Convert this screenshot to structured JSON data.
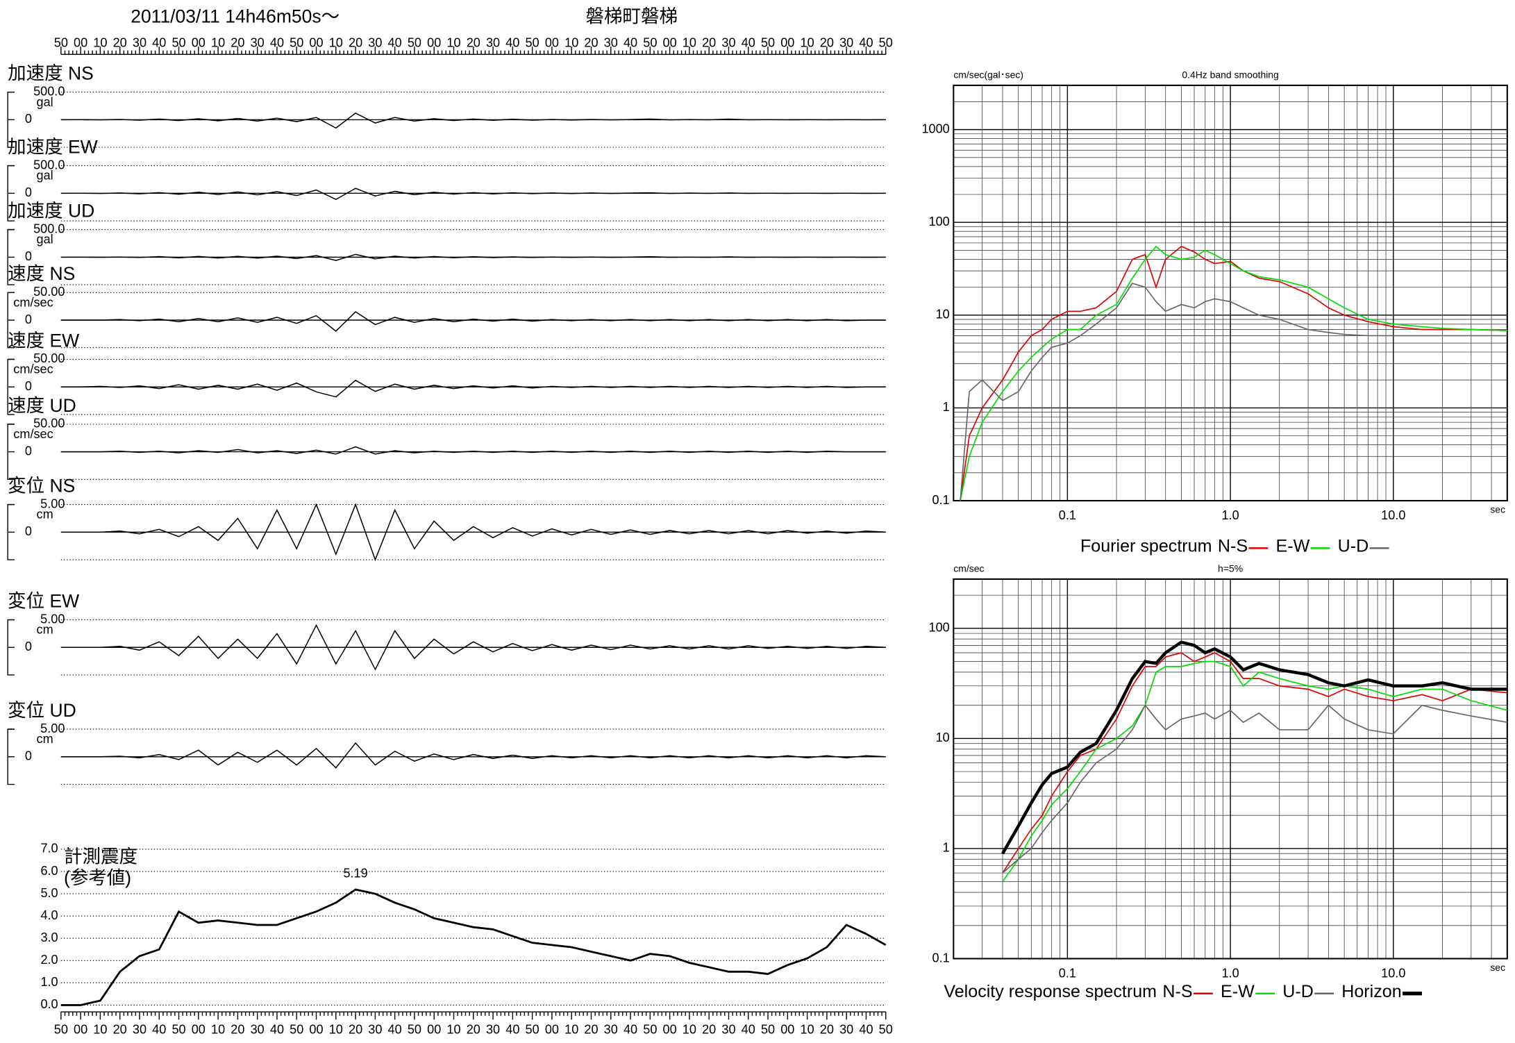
{
  "header": {
    "datetime": "2011/03/11  14h46m50s～",
    "station": "磐梯町磐梯"
  },
  "chart_data": [
    {
      "type": "waveform",
      "time_labels": [
        "50",
        "00",
        "10",
        "20",
        "30",
        "40",
        "50",
        "00",
        "10",
        "20",
        "30",
        "40",
        "50",
        "00",
        "10",
        "20",
        "30",
        "40",
        "50",
        "00",
        "10",
        "20",
        "30",
        "40",
        "50",
        "00",
        "10",
        "20",
        "30",
        "40",
        "50",
        "00",
        "10",
        "20",
        "30",
        "40",
        "50",
        "00",
        "10",
        "20",
        "30",
        "40",
        "50"
      ],
      "traces": [
        {
          "label": "加速度 NS",
          "unit": "gal",
          "ylim": [
            -500,
            500
          ],
          "yticks": [
            0,
            {
              "value": 500,
              "label": "500.0"
            }
          ],
          "values": [
            0,
            2,
            -3,
            5,
            -8,
            12,
            -15,
            18,
            -20,
            22,
            -25,
            28,
            -35,
            40,
            -150,
            120,
            -60,
            40,
            -25,
            20,
            -15,
            12,
            -10,
            8,
            -8,
            6,
            -5,
            5,
            -4,
            3,
            12,
            -3,
            3,
            -2,
            10,
            -2,
            2,
            -2,
            2,
            -1,
            1,
            -1,
            0
          ]
        },
        {
          "label": "加速度 EW",
          "unit": "gal",
          "ylim": [
            -500,
            500
          ],
          "yticks": [
            0,
            {
              "value": 500,
              "label": "500.0"
            }
          ],
          "values": [
            0,
            2,
            -3,
            5,
            -8,
            12,
            -18,
            20,
            -22,
            25,
            -28,
            30,
            -40,
            60,
            -110,
            90,
            -50,
            35,
            -25,
            18,
            -14,
            12,
            -10,
            8,
            -7,
            6,
            -5,
            5,
            -4,
            3,
            8,
            -3,
            3,
            -2,
            6,
            -2,
            2,
            -2,
            2,
            -1,
            1,
            -1,
            0
          ]
        },
        {
          "label": "加速度 UD",
          "unit": "gal",
          "ylim": [
            -500,
            500
          ],
          "yticks": [
            0,
            {
              "value": 500,
              "label": "500.0"
            }
          ],
          "values": [
            0,
            1,
            -2,
            4,
            -6,
            10,
            -12,
            14,
            -15,
            16,
            -18,
            20,
            -24,
            30,
            -60,
            50,
            -30,
            20,
            -15,
            12,
            -10,
            8,
            -7,
            6,
            -5,
            4,
            -4,
            3,
            -3,
            2,
            8,
            -2,
            2,
            -2,
            6,
            -1,
            1,
            -1,
            1,
            -1,
            1,
            -1,
            0
          ]
        },
        {
          "label": "速度 NS",
          "unit": "cm/sec",
          "ylim": [
            -50,
            50
          ],
          "yticks": [
            0,
            {
              "value": 50,
              "label": "50.00"
            }
          ],
          "values": [
            0,
            0,
            0,
            1,
            -1,
            2,
            -3,
            3,
            -3,
            4,
            -4,
            5,
            -6,
            8,
            -20,
            15,
            -8,
            5,
            -4,
            3,
            -3,
            2,
            -2,
            2,
            -2,
            1,
            -1,
            1,
            -1,
            1,
            -1,
            1,
            -1,
            1,
            -1,
            1,
            -1,
            1,
            -1,
            1,
            -1,
            0,
            0
          ]
        },
        {
          "label": "速度 EW",
          "unit": "cm/sec",
          "ylim": [
            -50,
            50
          ],
          "yticks": [
            0,
            {
              "value": 50,
              "label": "50.00"
            }
          ],
          "values": [
            0,
            0,
            1,
            -1,
            2,
            -3,
            4,
            -4,
            3,
            -4,
            5,
            -6,
            7,
            -9,
            -18,
            12,
            -8,
            5,
            -4,
            3,
            -3,
            2,
            -2,
            2,
            -2,
            1,
            -1,
            1,
            -1,
            1,
            -1,
            1,
            -1,
            1,
            -1,
            1,
            -1,
            1,
            -1,
            1,
            -1,
            0,
            0
          ]
        },
        {
          "label": "速度 UD",
          "unit": "cm/sec",
          "ylim": [
            -50,
            50
          ],
          "yticks": [
            0,
            {
              "value": 50,
              "label": "50.00"
            }
          ],
          "values": [
            0,
            0,
            0,
            1,
            -1,
            1,
            -2,
            2,
            -1,
            4,
            -2,
            2,
            -3,
            3,
            -4,
            9,
            -4,
            2,
            -2,
            1,
            -1,
            1,
            -1,
            1,
            -1,
            1,
            -1,
            1,
            -1,
            1,
            -1,
            1,
            -1,
            1,
            -1,
            1,
            -1,
            1,
            -1,
            1,
            0,
            0,
            0
          ]
        },
        {
          "label": "変位 NS",
          "unit": "cm",
          "ylim": [
            -5,
            5
          ],
          "yticks": [
            0,
            {
              "value": 5,
              "label": "5.00"
            }
          ],
          "values": [
            0,
            0,
            0,
            0.2,
            -0.3,
            0.5,
            -0.8,
            1,
            -1.5,
            2.5,
            -3,
            4,
            -3,
            5,
            -4,
            5,
            -5,
            4,
            -3,
            2,
            -1.5,
            1,
            -1,
            0.8,
            -0.7,
            0.6,
            -0.5,
            0.5,
            -0.4,
            0.4,
            -0.4,
            0.3,
            -0.3,
            0.3,
            -0.3,
            0.3,
            -0.3,
            0.3,
            -0.2,
            0.2,
            -0.2,
            0.2,
            0
          ]
        },
        {
          "label": "変位 EW",
          "unit": "cm",
          "ylim": [
            -5,
            5
          ],
          "yticks": [
            0,
            {
              "value": 5,
              "label": "5.00"
            }
          ],
          "values": [
            0,
            0,
            0,
            0.2,
            -0.5,
            1,
            -1.5,
            2,
            -2,
            1.5,
            -2,
            2.5,
            -3,
            4,
            -3,
            3,
            -4,
            3,
            -2,
            1.5,
            -1.2,
            1,
            -0.8,
            0.7,
            -0.6,
            0.5,
            -0.5,
            0.4,
            -0.4,
            0.4,
            -0.3,
            0.3,
            -0.3,
            0.3,
            -0.3,
            0.3,
            -0.2,
            0.2,
            -0.2,
            0.2,
            -0.2,
            0.2,
            0
          ]
        },
        {
          "label": "変位 UD",
          "unit": "cm",
          "ylim": [
            -5,
            5
          ],
          "yticks": [
            0,
            {
              "value": 5,
              "label": "5.00"
            }
          ],
          "values": [
            0,
            0,
            0,
            0.1,
            -0.2,
            0.4,
            -0.5,
            1.2,
            -1.5,
            0.8,
            -1,
            1.2,
            -1.5,
            1.5,
            -2,
            2.5,
            -1.5,
            1,
            -0.8,
            0.5,
            -0.5,
            0.4,
            -0.3,
            0.3,
            -0.3,
            0.2,
            -0.2,
            0.2,
            -0.2,
            0.2,
            -0.2,
            0.2,
            -0.2,
            0.2,
            -0.2,
            0.2,
            -0.2,
            0.2,
            -0.2,
            0.2,
            -0.2,
            0.2,
            0
          ]
        }
      ]
    },
    {
      "type": "line",
      "title": "計測震度",
      "subtitle": "(参考値)",
      "annotation": "5.19",
      "color": "#000000",
      "ylim": [
        0,
        7
      ],
      "yticks": [
        {
          "value": 0,
          "label": "0.0"
        },
        {
          "value": 1,
          "label": "1.0"
        },
        {
          "value": 2,
          "label": "2.0"
        },
        {
          "value": 3,
          "label": "3.0"
        },
        {
          "value": 4,
          "label": "4.0"
        },
        {
          "value": 5,
          "label": "5.0"
        },
        {
          "value": 6,
          "label": "6.0"
        },
        {
          "value": 7,
          "label": "7.0"
        }
      ],
      "values": [
        0,
        0,
        0.2,
        1.5,
        2.2,
        2.5,
        4.2,
        3.7,
        3.8,
        3.7,
        3.6,
        3.6,
        3.9,
        4.2,
        4.6,
        5.19,
        5.0,
        4.6,
        4.3,
        3.9,
        3.7,
        3.5,
        3.4,
        3.1,
        2.8,
        2.7,
        2.6,
        2.4,
        2.2,
        2.0,
        2.3,
        2.2,
        1.9,
        1.7,
        1.5,
        1.5,
        1.4,
        1.8,
        2.1,
        2.6,
        3.6,
        3.2,
        2.7
      ]
    },
    {
      "type": "loglog",
      "title": "0.4Hz band smoothing",
      "y_label": "cm/sec(gal･sec)",
      "x_label": "sec",
      "legend_title": "Fourier spectrum",
      "xlim": [
        0.02,
        50
      ],
      "ylim": [
        0.1,
        3000
      ],
      "xticks": [
        0.1,
        {
          "value": 1,
          "label": "1.0"
        },
        {
          "value": 10,
          "label": "10.0"
        }
      ],
      "yticks": [
        0.1,
        1,
        10,
        100,
        1000
      ],
      "minor_ticks": [
        2,
        3,
        4,
        5,
        6,
        7,
        8,
        9
      ],
      "x": [
        0.022,
        0.025,
        0.03,
        0.04,
        0.05,
        0.06,
        0.07,
        0.08,
        0.1,
        0.12,
        0.15,
        0.2,
        0.25,
        0.3,
        0.35,
        0.4,
        0.5,
        0.6,
        0.7,
        0.8,
        1.0,
        1.2,
        1.5,
        2,
        3,
        4,
        5,
        7,
        10,
        15,
        20,
        30,
        50
      ],
      "series": [
        {
          "name": "N-S",
          "color": "#e00000",
          "width": 1.2,
          "values": [
            0.1,
            0.5,
            1.0,
            2,
            4,
            6,
            7,
            9,
            11,
            11,
            12,
            18,
            40,
            45,
            20,
            40,
            55,
            48,
            40,
            36,
            38,
            30,
            25,
            23,
            17,
            12,
            10,
            8.5,
            7.5,
            7,
            7,
            7,
            6.8
          ]
        },
        {
          "name": "E-W",
          "color": "#00dd00",
          "width": 1.2,
          "values": [
            0.1,
            0.3,
            0.7,
            1.5,
            2.5,
            3.5,
            4.5,
            5.5,
            7,
            7,
            10,
            13,
            25,
            40,
            55,
            45,
            40,
            42,
            50,
            45,
            36,
            30,
            26,
            24,
            20,
            15,
            12,
            9,
            8,
            7.5,
            7.2,
            7,
            6.8
          ]
        },
        {
          "name": "U-D",
          "color": "#666666",
          "width": 1.2,
          "values": [
            0.1,
            1.5,
            2,
            1.2,
            1.5,
            2.5,
            3.5,
            4.5,
            5,
            6,
            8,
            12,
            22,
            20,
            14,
            11,
            13,
            12,
            14,
            15,
            14,
            12,
            10,
            9,
            7,
            6.5,
            6.2,
            6,
            6,
            6,
            6,
            6,
            6
          ]
        }
      ]
    },
    {
      "type": "loglog",
      "title": "h=5%",
      "y_label": "cm/sec",
      "x_label": "sec",
      "legend_title": "Velocity response spectrum",
      "xlim": [
        0.02,
        50
      ],
      "ylim": [
        0.1,
        280
      ],
      "xticks": [
        0.1,
        {
          "value": 1,
          "label": "1.0"
        },
        {
          "value": 10,
          "label": "10.0"
        }
      ],
      "yticks": [
        0.1,
        1,
        10,
        100
      ],
      "minor_ticks": [
        2,
        3,
        4,
        5,
        6,
        7,
        8,
        9
      ],
      "x": [
        0.04,
        0.05,
        0.06,
        0.07,
        0.08,
        0.1,
        0.12,
        0.15,
        0.2,
        0.25,
        0.3,
        0.35,
        0.4,
        0.5,
        0.6,
        0.7,
        0.8,
        1.0,
        1.2,
        1.5,
        2,
        3,
        4,
        5,
        7,
        10,
        15,
        20,
        30,
        50
      ],
      "series": [
        {
          "name": "N-S",
          "color": "#e00000",
          "width": 1.2,
          "values": [
            0.6,
            1.0,
            1.5,
            2.0,
            3.0,
            5,
            7,
            8,
            15,
            30,
            45,
            45,
            55,
            60,
            50,
            55,
            60,
            50,
            35,
            35,
            30,
            28,
            24,
            28,
            24,
            22,
            25,
            22,
            28,
            26
          ]
        },
        {
          "name": "E-W",
          "color": "#00dd00",
          "width": 1.2,
          "values": [
            0.5,
            0.8,
            1.3,
            1.8,
            2.5,
            3.5,
            5,
            8,
            10,
            13,
            20,
            40,
            45,
            45,
            48,
            50,
            50,
            45,
            30,
            40,
            35,
            30,
            28,
            30,
            28,
            24,
            28,
            28,
            22,
            18
          ]
        },
        {
          "name": "U-D",
          "color": "#666666",
          "width": 1.2,
          "values": [
            0.6,
            0.8,
            1.0,
            1.4,
            1.8,
            2.6,
            4,
            6,
            8,
            12,
            20,
            15,
            12,
            15,
            16,
            17,
            15,
            18,
            14,
            17,
            12,
            12,
            20,
            15,
            12,
            11,
            20,
            18,
            16,
            14
          ]
        },
        {
          "name": "Horizon",
          "color": "#000000",
          "width": 3.2,
          "values": [
            0.9,
            1.6,
            2.6,
            3.8,
            4.8,
            5.5,
            7.5,
            9,
            18,
            35,
            50,
            48,
            60,
            75,
            70,
            60,
            65,
            55,
            42,
            48,
            42,
            38,
            32,
            30,
            34,
            30,
            30,
            32,
            28,
            28
          ]
        }
      ]
    }
  ]
}
